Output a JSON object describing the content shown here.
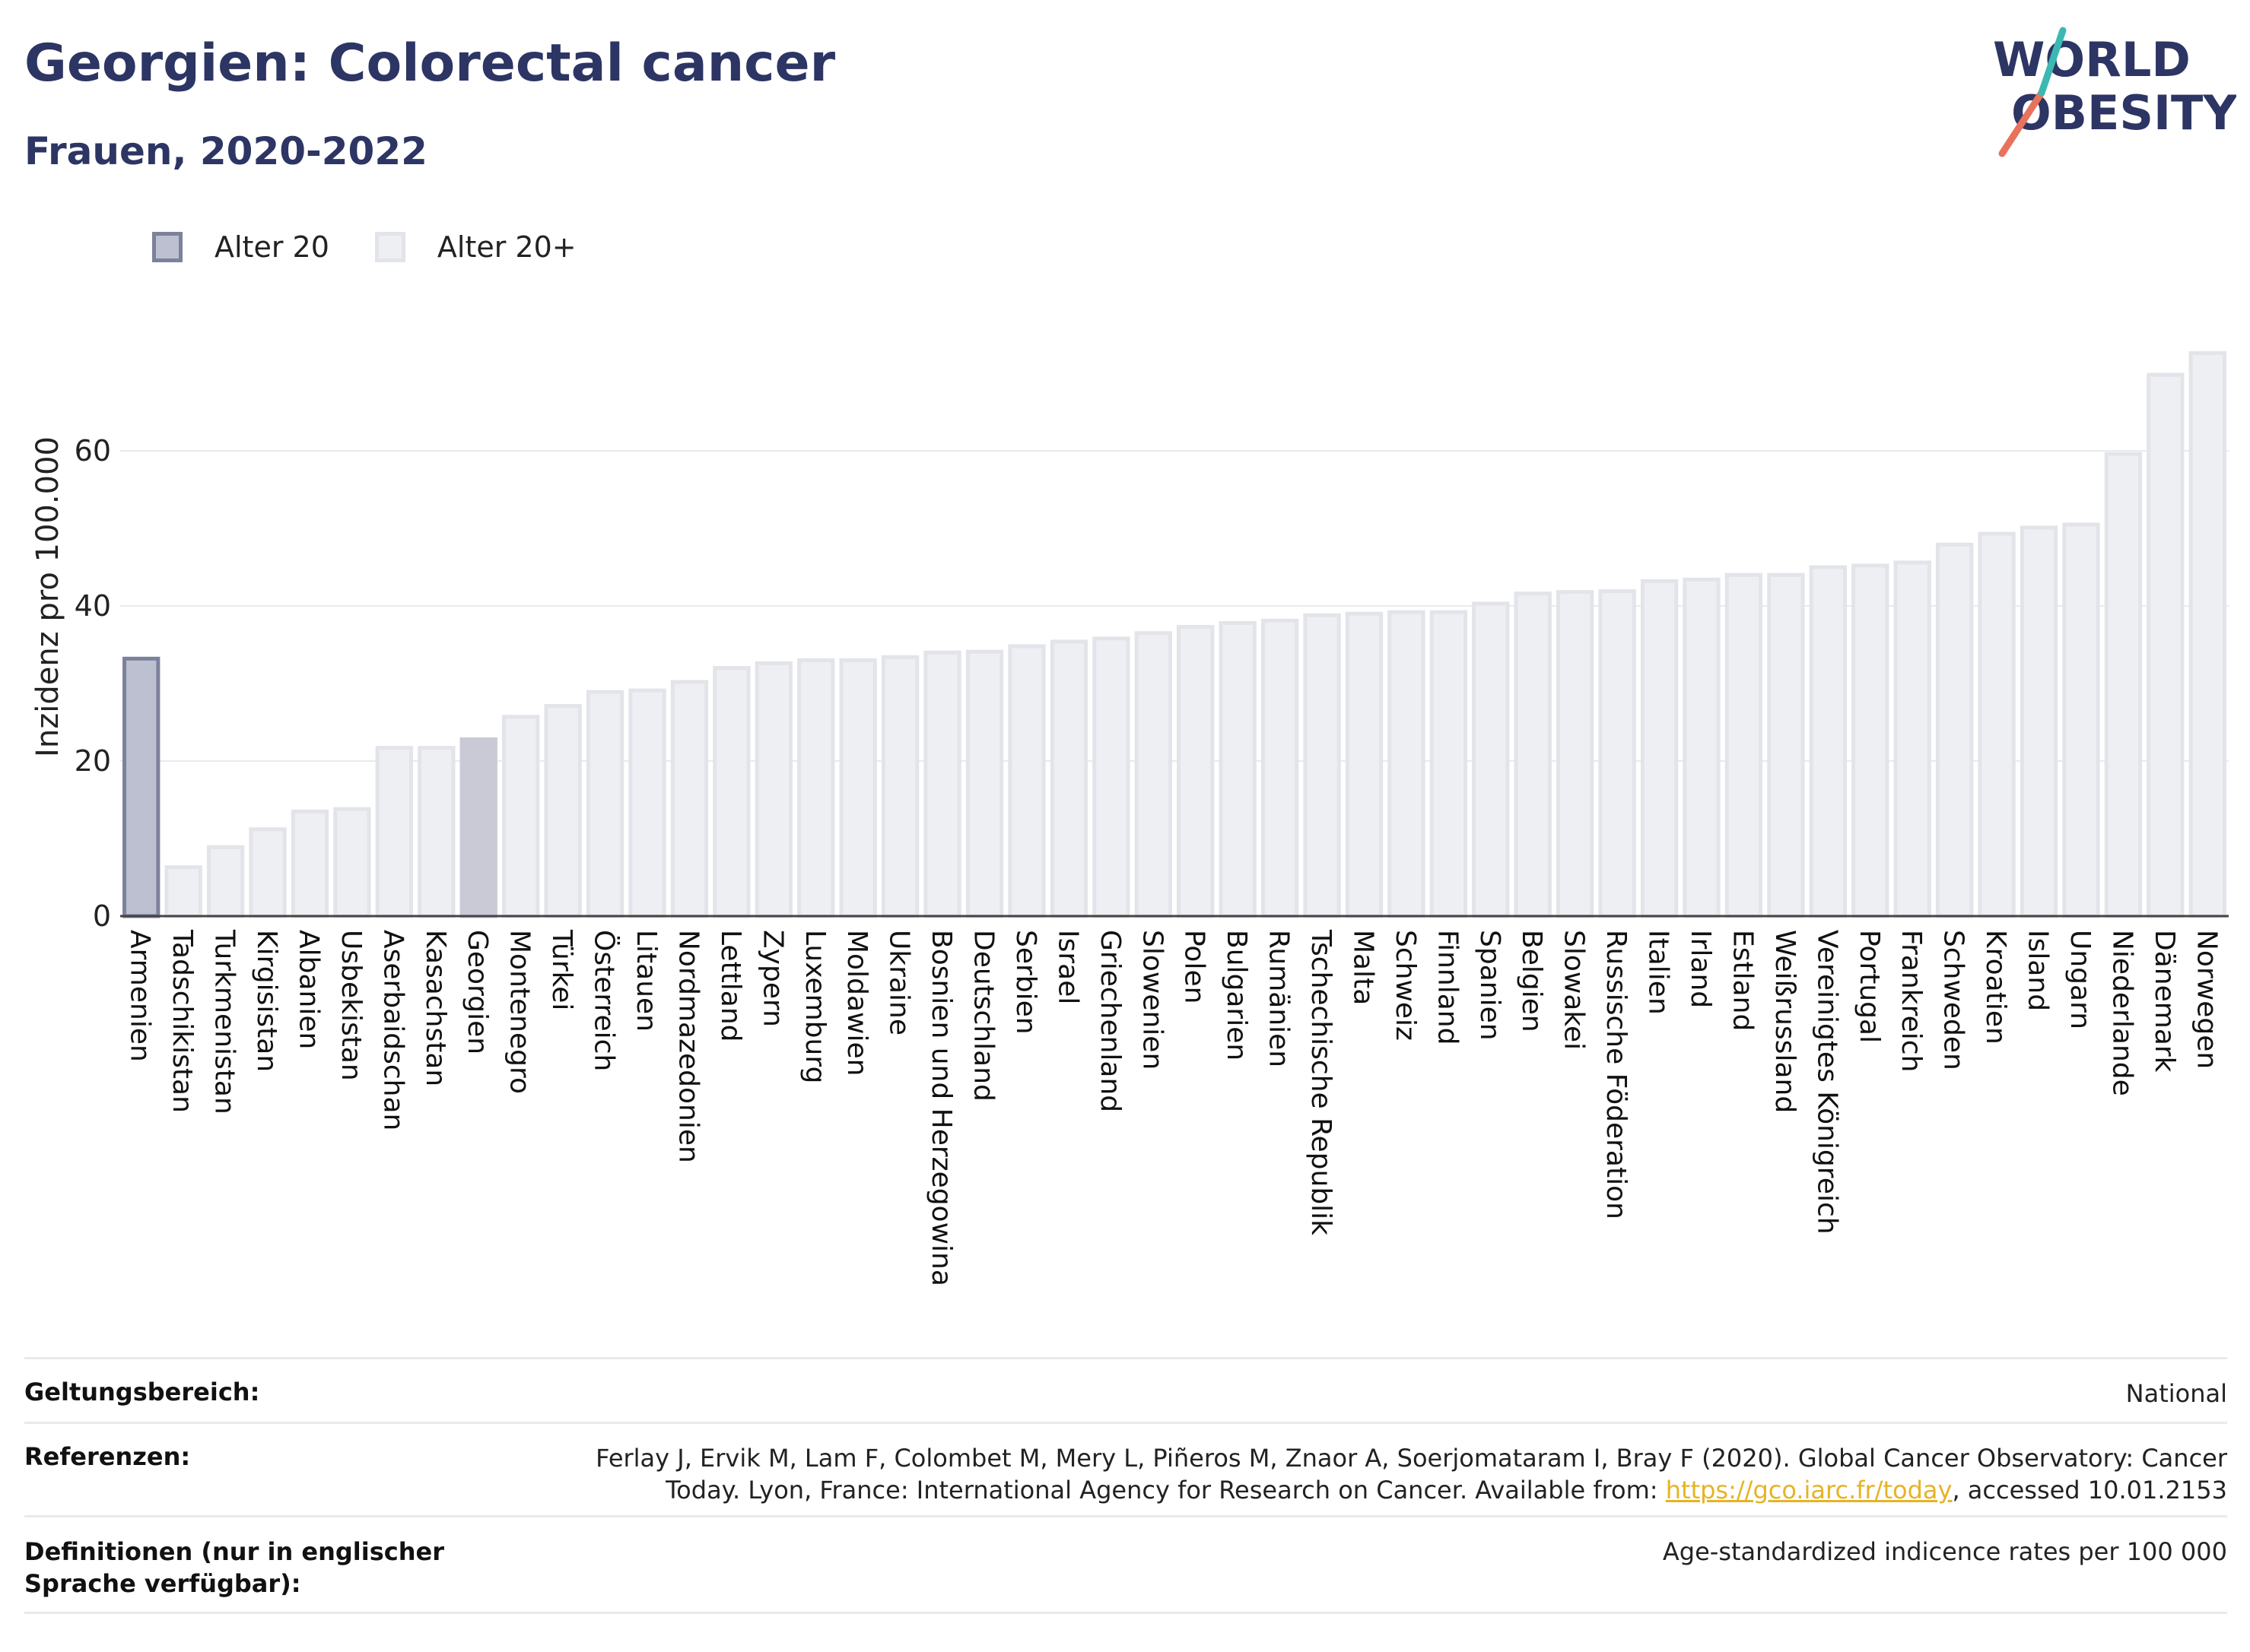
{
  "header": {
    "title": "Georgien: Colorectal cancer",
    "subtitle": "Frauen, 2020-2022"
  },
  "logo": {
    "line1": "WORLD",
    "line2": "OBESITY"
  },
  "legend": [
    {
      "label": "Alter 20",
      "color": "#bdc0d1"
    },
    {
      "label": "Alter 20+",
      "color": "#eeeff3"
    }
  ],
  "chart_data": {
    "type": "bar",
    "ylabel": "Inzidenz pro 100.000",
    "ylim": [
      0,
      75
    ],
    "yticks": [
      0,
      20,
      40,
      60
    ],
    "grid": true,
    "categories": [
      "Armenien",
      "Tadschikistan",
      "Turkmenistan",
      "Kirgisistan",
      "Albanien",
      "Usbekistan",
      "Aserbaidschan",
      "Kasachstan",
      "Georgien",
      "Montenegro",
      "Türkei",
      "Österreich",
      "Litauen",
      "Nordmazedonien",
      "Lettland",
      "Zypern",
      "Luxemburg",
      "Moldawien",
      "Ukraine",
      "Bosnien und Herzegowina",
      "Deutschland",
      "Serbien",
      "Israel",
      "Griechenland",
      "Slowenien",
      "Polen",
      "Bulgarien",
      "Rumänien",
      "Tschechische Republik",
      "Malta",
      "Schweiz",
      "Finnland",
      "Spanien",
      "Belgien",
      "Slowakei",
      "Russische Föderation",
      "Italien",
      "Irland",
      "Estland",
      "Weißrussland",
      "Vereinigtes Königreich",
      "Portugal",
      "Frankreich",
      "Schweden",
      "Kroatien",
      "Island",
      "Ungarn",
      "Niederlande",
      "Dänemark",
      "Norwegen"
    ],
    "values": [
      33.2,
      6.3,
      8.9,
      11.2,
      13.5,
      13.8,
      21.7,
      21.7,
      22.8,
      25.7,
      27.1,
      28.9,
      29.1,
      30.2,
      32.0,
      32.6,
      33.0,
      33.0,
      33.4,
      34.0,
      34.1,
      34.8,
      35.4,
      35.8,
      36.5,
      37.3,
      37.8,
      38.1,
      38.8,
      39.0,
      39.2,
      39.2,
      40.3,
      41.6,
      41.8,
      41.9,
      43.2,
      43.4,
      44.0,
      44.0,
      45.0,
      45.2,
      45.6,
      47.9,
      49.3,
      50.1,
      50.5,
      59.6,
      69.8,
      72.6
    ],
    "series_style": [
      "Alter 20",
      "Alter 20+",
      "Alter 20+",
      "Alter 20+",
      "Alter 20+",
      "Alter 20+",
      "Alter 20+",
      "Alter 20+",
      "highlight",
      "Alter 20+",
      "Alter 20+",
      "Alter 20+",
      "Alter 20+",
      "Alter 20+",
      "Alter 20+",
      "Alter 20+",
      "Alter 20+",
      "Alter 20+",
      "Alter 20+",
      "Alter 20+",
      "Alter 20+",
      "Alter 20+",
      "Alter 20+",
      "Alter 20+",
      "Alter 20+",
      "Alter 20+",
      "Alter 20+",
      "Alter 20+",
      "Alter 20+",
      "Alter 20+",
      "Alter 20+",
      "Alter 20+",
      "Alter 20+",
      "Alter 20+",
      "Alter 20+",
      "Alter 20+",
      "Alter 20+",
      "Alter 20+",
      "Alter 20+",
      "Alter 20+",
      "Alter 20+",
      "Alter 20+",
      "Alter 20+",
      "Alter 20+",
      "Alter 20+",
      "Alter 20+",
      "Alter 20+",
      "Alter 20+",
      "Alter 20+",
      "Alter 20+"
    ]
  },
  "colors": {
    "title": "#2c3563",
    "bar_dark_fill": "#bdc0d1",
    "bar_dark_stroke": "#7c819c",
    "bar_light_fill": "#eeeff3",
    "bar_light_stroke": "#e3e4ea",
    "bar_highlight_fill": "#c9cad6",
    "link": "#e6b325"
  },
  "footer": {
    "scope_label": "Geltungsbereich:",
    "scope_value": "National",
    "refs_label": "Referenzen:",
    "refs_line1": "Ferlay J, Ervik M, Lam F, Colombet M, Mery L, Piñeros M, Znaor A, Soerjomataram I, Bray F (2020). Global Cancer Observatory: Cancer",
    "refs_line2_pre": "Today. Lyon, France: International Agency for Research on Cancer. Available from: ",
    "refs_link": "https://gco.iarc.fr/today",
    "refs_line2_post": ", accessed 10.01.2153",
    "defs_label": "Definitionen (nur in englischer Sprache verfügbar):",
    "defs_value": "Age-standardized indicence rates per 100 000"
  }
}
